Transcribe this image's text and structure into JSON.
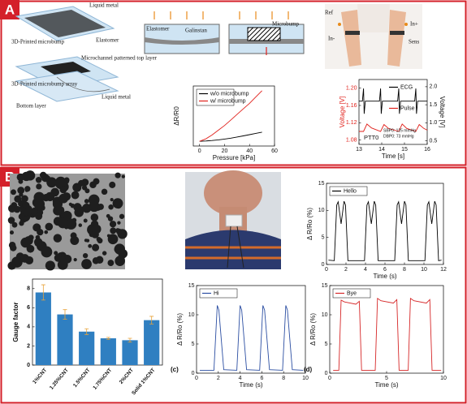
{
  "panels": {
    "a": "A",
    "b": "B"
  },
  "diagram": {
    "liquid_metal_top": "Liquid metal",
    "microbump_3d": "3D-Printed microbump",
    "elastomer_left": "Elastomer",
    "top_layer": "Microchannel patterned top layer",
    "bump_array": "3D-Printed microbump array",
    "liquid_metal_bottom": "Liquid metal",
    "bottom_layer": "Bottom layer",
    "elastomer_mid": "Elastomer",
    "galinstan": "Galinstan",
    "microbump": "Microbump",
    "ref": "Ref",
    "in_plus": "In+",
    "in_minus": "In-",
    "sens": "Sens"
  },
  "chart_data": [
    {
      "type": "line",
      "xlabel": "Pressure [kPa]",
      "ylabel": "ΔR/R0",
      "xlim": [
        -5,
        60
      ],
      "ylim": [
        -0.3,
        3.5
      ],
      "xticks": [
        0,
        20,
        40,
        60
      ],
      "legend": "upper left",
      "series": [
        {
          "name": "w/o microbump",
          "color": "#000000",
          "x": [
            0,
            5,
            10,
            15,
            20,
            25,
            30,
            35,
            40,
            45,
            50
          ],
          "values": [
            0,
            0.02,
            0.05,
            0.09,
            0.14,
            0.2,
            0.27,
            0.34,
            0.42,
            0.5,
            0.58
          ]
        },
        {
          "name": "w/ microbump",
          "color": "#e0201b",
          "x": [
            0,
            5,
            10,
            15,
            20,
            25,
            30,
            35,
            40,
            45,
            50
          ],
          "values": [
            0,
            0.15,
            0.4,
            0.7,
            1.0,
            1.35,
            1.7,
            2.05,
            2.4,
            2.8,
            3.2
          ]
        }
      ]
    },
    {
      "type": "line",
      "xlabel": "Time [s]",
      "ylabel": "Voltage [V]",
      "y2label": "Voltage [V]",
      "y_color": "#e0201b",
      "xlim": [
        13,
        16
      ],
      "xticks": [
        13,
        14,
        15,
        16
      ],
      "ylim": [
        1.07,
        1.22
      ],
      "yticks": [
        1.08,
        1.12,
        1.16,
        {
          "value": 1.2,
          "label": "1.20"
        }
      ],
      "y2lim": [
        0.4,
        2.2
      ],
      "y2ticks": [
        0.5,
        {
          "value": 1.0,
          "label": "1.0"
        },
        1.5,
        {
          "value": 2.0,
          "label": "2.0"
        }
      ],
      "legend": "upper right",
      "annotations": [
        "PTT0",
        "SBP0: 125 mmHg",
        "DBP0: 73 mmHg"
      ],
      "series": [
        {
          "name": "ECG",
          "color": "#000000",
          "axis": "y2",
          "x": [
            13,
            13.15,
            13.2,
            13.23,
            13.28,
            13.9,
            13.95,
            13.98,
            14.03,
            14.7,
            14.75,
            14.78,
            14.83,
            15.45,
            15.5,
            15.53,
            15.58,
            16
          ],
          "values": [
            1.6,
            1.6,
            1.95,
            1.25,
            1.6,
            1.6,
            1.95,
            1.25,
            1.6,
            1.6,
            1.95,
            1.25,
            1.6,
            1.6,
            1.95,
            1.25,
            1.6,
            1.6
          ]
        },
        {
          "name": "Pulse",
          "color": "#e0201b",
          "x": [
            13,
            13.2,
            13.35,
            13.55,
            13.95,
            14.1,
            14.3,
            14.75,
            14.9,
            15.1,
            15.5,
            15.65,
            15.85,
            16
          ],
          "values": [
            1.1,
            1.1,
            1.117,
            1.108,
            1.1,
            1.116,
            1.107,
            1.1,
            1.117,
            1.107,
            1.1,
            1.116,
            1.107,
            1.103
          ]
        }
      ]
    },
    {
      "type": "line",
      "xlabel": "Time (s)",
      "ylabel": "Δ R/Ro (%)",
      "xlim": [
        0,
        12
      ],
      "xticks": [
        0,
        2,
        4,
        6,
        8,
        10,
        12
      ],
      "ylim": [
        0,
        15
      ],
      "yticks": [
        0,
        5,
        10,
        15
      ],
      "legend": "upper left",
      "series": [
        {
          "name": "Hello",
          "color": "#000000",
          "x": [
            0.2,
            0.8,
            1.05,
            1.2,
            1.5,
            1.8,
            1.95,
            2.2,
            3.9,
            4.15,
            4.3,
            4.6,
            4.9,
            5.05,
            5.3,
            7.0,
            7.25,
            7.4,
            7.7,
            8.0,
            8.15,
            8.4,
            10.1,
            10.35,
            10.5,
            10.8,
            11.1,
            11.25,
            11.5,
            11.8
          ],
          "values": [
            0.8,
            0.7,
            11,
            11.6,
            7.5,
            11.7,
            11,
            0.7,
            0.7,
            11,
            11.6,
            7.5,
            11.7,
            11,
            0.7,
            0.7,
            11,
            11.6,
            7.5,
            11.7,
            11,
            0.7,
            0.7,
            11,
            11.6,
            7.5,
            11.7,
            11,
            0.7,
            0.8
          ]
        }
      ]
    },
    {
      "type": "bar",
      "ylabel": "Gauge factor",
      "ylim": [
        0,
        9
      ],
      "yticks": [
        0,
        2,
        4,
        6,
        8
      ],
      "color": "#2f7fc1",
      "error_color": "#e8a33a",
      "categories": [
        "1%CNT",
        "1.25%CNT",
        "1.5%CNT",
        "1.75%CNT",
        "2%CNT",
        "Solid 1%CNT"
      ],
      "values": [
        7.6,
        5.3,
        3.5,
        2.8,
        2.6,
        4.7
      ],
      "errors": [
        0.8,
        0.5,
        0.3,
        0.1,
        0.2,
        0.4
      ]
    },
    {
      "type": "line",
      "panel_label": "(c)",
      "xlabel": "Time (s)",
      "ylabel": "Δ R/Ro (%)",
      "xlim": [
        0,
        10
      ],
      "xticks": [
        0,
        2,
        4,
        6,
        8,
        10
      ],
      "ylim": [
        0,
        15
      ],
      "yticks": [
        0,
        5,
        10,
        15
      ],
      "legend": "upper left",
      "series": [
        {
          "name": "Hi",
          "color": "#2b4ea2",
          "x": [
            0.3,
            1.6,
            1.9,
            2.05,
            2.5,
            3.7,
            4.0,
            4.15,
            4.6,
            5.8,
            6.1,
            6.25,
            6.7,
            7.9,
            8.2,
            8.35,
            8.8,
            9.8
          ],
          "values": [
            0.5,
            0.5,
            11.6,
            10.8,
            0.6,
            0.5,
            11.6,
            10.8,
            0.6,
            0.5,
            11.6,
            10.8,
            0.6,
            0.5,
            11.6,
            10.8,
            0.6,
            0.5
          ]
        }
      ]
    },
    {
      "type": "line",
      "panel_label": "(d)",
      "xlabel": "Time (s)",
      "ylabel": "Δ R/Ro (%)",
      "xlim": [
        0,
        10
      ],
      "xticks": [
        0,
        5,
        10
      ],
      "ylim": [
        0,
        15
      ],
      "yticks": [
        0,
        5,
        10,
        15
      ],
      "legend": "upper left",
      "series": [
        {
          "name": "Bye",
          "color": "#d62728",
          "x": [
            0.3,
            0.8,
            1.0,
            1.3,
            2.3,
            2.6,
            2.8,
            4.0,
            4.2,
            4.5,
            5.6,
            5.9,
            6.1,
            6.9,
            7.1,
            7.4,
            8.5,
            8.8,
            9.0,
            9.8
          ],
          "values": [
            0.5,
            0.5,
            12.5,
            12.2,
            11.8,
            12.3,
            0.5,
            0.5,
            12.8,
            12.4,
            12,
            12.6,
            0.5,
            0.5,
            12.8,
            12.4,
            12,
            12.6,
            0.5,
            0.5
          ]
        }
      ]
    }
  ]
}
